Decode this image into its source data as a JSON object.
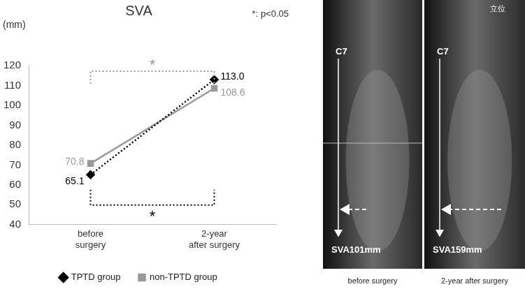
{
  "chart_data": {
    "type": "line",
    "title": "SVA",
    "y_label": "(mm)",
    "categories": [
      "before surgery",
      "2-year after surgery"
    ],
    "series": [
      {
        "name": "TPTD group",
        "color": "#000000",
        "values": [
          65.1,
          113.0
        ],
        "value_labels": [
          "65.1",
          "113.0"
        ],
        "marker": "diamond",
        "line_style": "dotted"
      },
      {
        "name": "non-TPTD group",
        "color": "#999999",
        "values": [
          70.8,
          108.6
        ],
        "value_labels": [
          "70.8",
          "108.6"
        ],
        "marker": "square",
        "line_style": "solid"
      }
    ],
    "ylim": [
      40,
      120
    ],
    "yticks": [
      40,
      50,
      60,
      70,
      80,
      90,
      100,
      110,
      120
    ],
    "grid": false,
    "legend": "bottom",
    "data_labels": true,
    "annotations": [
      {
        "text": "*: p<0.05"
      },
      {
        "text": "*",
        "series": "non-TPTD group"
      },
      {
        "text": "*",
        "series": "TPTD group"
      }
    ]
  },
  "images": [
    {
      "caption": "before surgery",
      "top_label": "C7",
      "bottom_label": "SVA101mm"
    },
    {
      "caption": "2-year after surgery",
      "top_label": "C7",
      "bottom_label": "SVA159mm",
      "header": "立位"
    }
  ]
}
